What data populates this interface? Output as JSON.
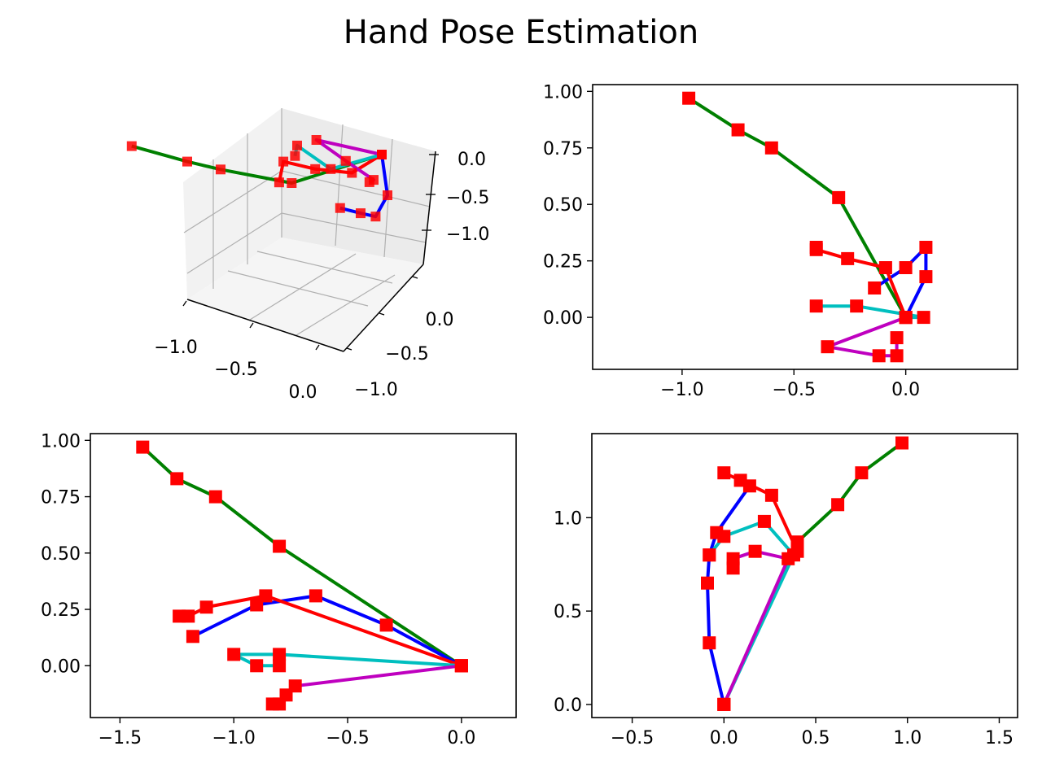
{
  "figure": {
    "title": "Hand Pose Estimation",
    "colors": {
      "background": "#ffffff",
      "joint": "#ff0000",
      "pane": "#f2f2f2",
      "grid": "#b0b0b0"
    }
  },
  "chart_data": [
    {
      "type": "3d-line",
      "title": "",
      "xlabel": "",
      "ylabel": "",
      "zlabel": "",
      "xticks": [
        "−1.0",
        "−0.5",
        "0.0"
      ],
      "yticks": [
        "0.0",
        "−0.5",
        "−1.0"
      ],
      "zticks": [
        "0.0",
        "−0.5",
        "−1.0"
      ],
      "grid": true,
      "marker": "square",
      "marker_color": "#ff0000",
      "series": [
        {
          "color": "#008000",
          "points": [
            [
              0,
              0,
              0
            ],
            [
              -0.3,
              0.5,
              -0.8
            ],
            [
              -0.6,
              0.75,
              -1.05
            ],
            [
              -0.75,
              0.83,
              -1.2
            ],
            [
              -1.0,
              0.97,
              -1.4
            ]
          ]
        },
        {
          "color": "#0000ff",
          "points": [
            [
              0,
              0,
              0
            ],
            [
              0.1,
              0.17,
              -0.35
            ],
            [
              0.09,
              0.3,
              -0.65
            ],
            [
              0.0,
              0.22,
              -0.9
            ],
            [
              -0.12,
              0.13,
              -1.2
            ]
          ]
        },
        {
          "color": "#ff0000",
          "points": [
            [
              0,
              0,
              0
            ],
            [
              -0.08,
              0.22,
              -0.33
            ],
            [
              -0.25,
              0.26,
              -0.65
            ],
            [
              -0.4,
              0.3,
              -0.85
            ],
            [
              -0.4,
              0.3,
              -1.25
            ]
          ]
        },
        {
          "color": "#00bfbf",
          "points": [
            [
              0,
              0,
              0
            ],
            [
              -0.22,
              0.04,
              -0.8
            ],
            [
              -0.4,
              0.05,
              -0.8
            ],
            [
              -0.4,
              0.05,
              -1.0
            ]
          ]
        },
        {
          "color": "#bf00bf",
          "points": [
            [
              0,
              0,
              0
            ],
            [
              -0.35,
              -0.13,
              -0.75
            ],
            [
              -0.2,
              -0.18,
              -0.82
            ],
            [
              -0.05,
              -0.18,
              -0.8
            ],
            [
              -0.05,
              -0.09,
              -0.75
            ]
          ]
        }
      ]
    },
    {
      "type": "line",
      "title": "",
      "xlabel": "",
      "ylabel": "",
      "xlim": [
        -1.4,
        0.5
      ],
      "ylim": [
        -0.23,
        1.03
      ],
      "xticks": [
        "−1.0",
        "−0.5",
        "0.0"
      ],
      "xtick_values": [
        -1.0,
        -0.5,
        0.0
      ],
      "yticks": [
        "0.00",
        "0.25",
        "0.50",
        "0.75",
        "1.00"
      ],
      "ytick_values": [
        0.0,
        0.25,
        0.5,
        0.75,
        1.0
      ],
      "grid": false,
      "marker": "square",
      "marker_color": "#ff0000",
      "series": [
        {
          "color": "#008000",
          "x": [
            0.0,
            -0.3,
            -0.6,
            -0.75,
            -0.97
          ],
          "y": [
            0.0,
            0.53,
            0.75,
            0.83,
            0.97
          ]
        },
        {
          "color": "#0000ff",
          "x": [
            0.0,
            0.09,
            0.09,
            0.0,
            -0.14
          ],
          "y": [
            0.0,
            0.18,
            0.31,
            0.22,
            0.13
          ]
        },
        {
          "color": "#ff0000",
          "x": [
            0.0,
            -0.09,
            -0.26,
            -0.4,
            -0.4
          ],
          "y": [
            0.0,
            0.22,
            0.26,
            0.3,
            0.31
          ]
        },
        {
          "color": "#00bfbf",
          "x": [
            0.0,
            0.08,
            -0.22,
            -0.4
          ],
          "y": [
            0.0,
            0.0,
            0.05,
            0.05
          ]
        },
        {
          "color": "#bf00bf",
          "x": [
            0.0,
            -0.35,
            -0.12,
            -0.04,
            -0.04
          ],
          "y": [
            0.0,
            -0.13,
            -0.17,
            -0.17,
            -0.09
          ]
        }
      ]
    },
    {
      "type": "line",
      "title": "",
      "xlabel": "",
      "ylabel": "",
      "xlim": [
        -1.63,
        0.24
      ],
      "ylim": [
        -0.23,
        1.03
      ],
      "xticks": [
        "−1.5",
        "−1.0",
        "−0.5",
        "0.0"
      ],
      "xtick_values": [
        -1.5,
        -1.0,
        -0.5,
        0.0
      ],
      "yticks": [
        "0.00",
        "0.25",
        "0.50",
        "0.75",
        "1.00"
      ],
      "ytick_values": [
        0.0,
        0.25,
        0.5,
        0.75,
        1.0
      ],
      "grid": false,
      "marker": "square",
      "marker_color": "#ff0000",
      "series": [
        {
          "color": "#008000",
          "x": [
            0.0,
            -0.8,
            -1.08,
            -1.25,
            -1.4
          ],
          "y": [
            0.0,
            0.53,
            0.75,
            0.83,
            0.97
          ]
        },
        {
          "color": "#0000ff",
          "x": [
            0.0,
            -0.33,
            -0.64,
            -0.9,
            -1.18
          ],
          "y": [
            0.0,
            0.18,
            0.31,
            0.27,
            0.13
          ]
        },
        {
          "color": "#ff0000",
          "x": [
            0.0,
            -0.86,
            -1.12,
            -1.2,
            -1.24
          ],
          "y": [
            0.0,
            0.31,
            0.26,
            0.22,
            0.22
          ]
        },
        {
          "color": "#00bfbf",
          "x": [
            0.0,
            -0.8,
            -1.0,
            -0.9,
            -0.8
          ],
          "y": [
            0.0,
            0.05,
            0.05,
            0.0,
            0.0
          ]
        },
        {
          "color": "#bf00bf",
          "x": [
            0.0,
            -0.73,
            -0.77,
            -0.8,
            -0.83
          ],
          "y": [
            0.0,
            -0.09,
            -0.13,
            -0.17,
            -0.17
          ]
        }
      ]
    },
    {
      "type": "line",
      "title": "",
      "xlabel": "",
      "ylabel": "",
      "xlim": [
        -0.72,
        1.6
      ],
      "ylim": [
        -0.07,
        1.45
      ],
      "xticks": [
        "−0.5",
        "0.0",
        "0.5",
        "1.0",
        "1.5"
      ],
      "xtick_values": [
        -0.5,
        0.0,
        0.5,
        1.0,
        1.5
      ],
      "yticks": [
        "0.0",
        "0.5",
        "1.0"
      ],
      "ytick_values": [
        0.0,
        0.5,
        1.0
      ],
      "grid": false,
      "marker": "square",
      "marker_color": "#ff0000",
      "series": [
        {
          "color": "#008000",
          "x": [
            0.0,
            0.4,
            0.62,
            0.75,
            0.97
          ],
          "y": [
            0.0,
            0.87,
            1.07,
            1.24,
            1.4
          ]
        },
        {
          "color": "#0000ff",
          "x": [
            0.0,
            -0.08,
            -0.09,
            -0.08,
            -0.04,
            0.14
          ],
          "y": [
            0.0,
            0.33,
            0.65,
            0.8,
            0.92,
            1.17
          ]
        },
        {
          "color": "#ff0000",
          "x": [
            0.4,
            0.26,
            0.09,
            0.0
          ],
          "y": [
            0.82,
            1.12,
            1.2,
            1.24
          ]
        },
        {
          "color": "#00bfbf",
          "x": [
            0.0,
            0.38,
            0.22,
            0.0,
            -0.08
          ],
          "y": [
            0.0,
            0.8,
            0.98,
            0.9,
            0.8
          ]
        },
        {
          "color": "#bf00bf",
          "x": [
            0.0,
            0.35,
            0.17,
            0.05,
            0.05
          ],
          "y": [
            0.0,
            0.78,
            0.82,
            0.78,
            0.73
          ]
        }
      ]
    }
  ]
}
